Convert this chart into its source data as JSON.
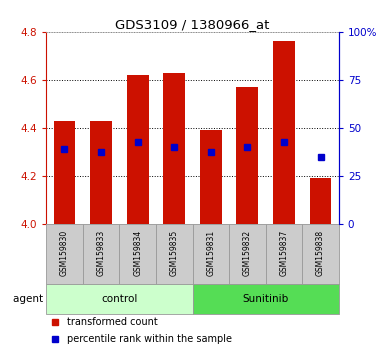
{
  "title": "GDS3109 / 1380966_at",
  "samples": [
    "GSM159830",
    "GSM159833",
    "GSM159834",
    "GSM159835",
    "GSM159831",
    "GSM159832",
    "GSM159837",
    "GSM159838"
  ],
  "bar_values": [
    4.43,
    4.43,
    4.62,
    4.63,
    4.39,
    4.57,
    4.76,
    4.19
  ],
  "percentile_values": [
    4.31,
    4.3,
    4.34,
    4.32,
    4.3,
    4.32,
    4.34,
    4.28
  ],
  "bar_bottom": 4.0,
  "ylim": [
    4.0,
    4.8
  ],
  "y2lim": [
    0,
    100
  ],
  "yticks": [
    4.0,
    4.2,
    4.4,
    4.6,
    4.8
  ],
  "y2ticks": [
    0,
    25,
    50,
    75,
    100
  ],
  "y2ticklabels": [
    "0",
    "25",
    "50",
    "75",
    "100%"
  ],
  "bar_color": "#cc1100",
  "percentile_color": "#0000cc",
  "control_color": "#ccffcc",
  "sunitinib_color": "#55dd55",
  "control_label": "control",
  "sunitinib_label": "Sunitinib",
  "agent_label": "agent",
  "legend_tc": "transformed count",
  "legend_pr": "percentile rank within the sample",
  "title_color": "#000000",
  "left_axis_color": "#cc1100",
  "right_axis_color": "#0000cc",
  "label_bg_color": "#cccccc",
  "label_edge_color": "#999999"
}
